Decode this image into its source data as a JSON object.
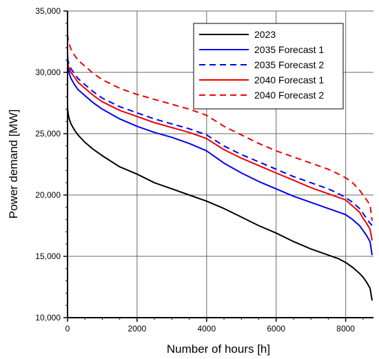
{
  "chart_data": {
    "type": "line",
    "title": "",
    "xlabel": "Number of hours [h]",
    "ylabel": "Power demand [MW]",
    "xlim": [
      0,
      8800
    ],
    "ylim": [
      10000,
      35000
    ],
    "xticks": [
      0,
      2000,
      4000,
      6000,
      8000
    ],
    "xtick_labels": [
      "0",
      "2000",
      "4000",
      "6000",
      "8000"
    ],
    "yticks": [
      10000,
      15000,
      20000,
      25000,
      30000,
      35000
    ],
    "ytick_labels": [
      "10,000",
      "15,000",
      "20,000",
      "25,000",
      "30,000",
      "35,000"
    ],
    "grid": true,
    "legend_position": "top-right",
    "series": [
      {
        "name": "2023",
        "color": "#000000",
        "dash": "solid",
        "x": [
          0,
          20,
          50,
          100,
          200,
          300,
          500,
          750,
          1000,
          1500,
          2000,
          2500,
          3000,
          3500,
          4000,
          4500,
          5000,
          5500,
          6000,
          6500,
          7000,
          7500,
          7800,
          8000,
          8200,
          8400,
          8500,
          8600,
          8700,
          8760
        ],
        "y": [
          27100,
          26600,
          26200,
          25800,
          25300,
          24900,
          24300,
          23700,
          23200,
          22300,
          21700,
          21000,
          20500,
          20000,
          19500,
          18900,
          18200,
          17500,
          16900,
          16200,
          15600,
          15100,
          14800,
          14500,
          14100,
          13600,
          13300,
          12900,
          12400,
          11400
        ]
      },
      {
        "name": "2035 Forecast 1",
        "color": "#0000ee",
        "dash": "solid",
        "x": [
          0,
          20,
          50,
          100,
          200,
          300,
          500,
          750,
          1000,
          1500,
          2000,
          2500,
          3000,
          3500,
          4000,
          4500,
          5000,
          5500,
          6000,
          6500,
          7000,
          7500,
          7800,
          8000,
          8200,
          8400,
          8500,
          8600,
          8700,
          8760
        ],
        "y": [
          31600,
          30400,
          29900,
          29500,
          29000,
          28600,
          28100,
          27500,
          27000,
          26200,
          25600,
          25100,
          24700,
          24200,
          23600,
          22600,
          21800,
          21100,
          20500,
          19900,
          19400,
          18900,
          18600,
          18400,
          18000,
          17500,
          17100,
          16700,
          16200,
          15100
        ]
      },
      {
        "name": "2035 Forecast  2",
        "color": "#0000ee",
        "dash": "dashed",
        "x": [
          0,
          20,
          50,
          100,
          200,
          300,
          500,
          750,
          1000,
          1500,
          2000,
          2500,
          3000,
          3500,
          4000,
          4500,
          5000,
          5500,
          6000,
          6500,
          7000,
          7500,
          7800,
          8000,
          8200,
          8400,
          8500,
          8600,
          8700,
          8760
        ],
        "y": [
          31200,
          30900,
          30600,
          30300,
          29900,
          29500,
          29000,
          28400,
          27900,
          27200,
          26700,
          26200,
          25800,
          25400,
          24900,
          24000,
          23300,
          22700,
          22100,
          21500,
          21000,
          20500,
          20100,
          19800,
          19400,
          18900,
          18500,
          18100,
          17700,
          17500
        ]
      },
      {
        "name": "2040 Forecast 1",
        "color": "#ee0000",
        "dash": "solid",
        "x": [
          0,
          20,
          50,
          100,
          200,
          300,
          500,
          750,
          1000,
          1500,
          2000,
          2500,
          3000,
          3500,
          4000,
          4500,
          5000,
          5500,
          6000,
          6500,
          7000,
          7500,
          7800,
          8000,
          8200,
          8400,
          8500,
          8600,
          8700,
          8760
        ],
        "y": [
          30900,
          30500,
          30300,
          30000,
          29600,
          29200,
          28700,
          28100,
          27600,
          26900,
          26400,
          25900,
          25500,
          25100,
          24600,
          23700,
          23000,
          22400,
          21800,
          21200,
          20600,
          20100,
          19800,
          19600,
          19100,
          18600,
          18100,
          17700,
          17200,
          16300
        ]
      },
      {
        "name": "2040 Forecast 2",
        "color": "#ee0000",
        "dash": "dashed",
        "x": [
          0,
          20,
          50,
          100,
          200,
          300,
          500,
          750,
          1000,
          1500,
          2000,
          2500,
          3000,
          3500,
          4000,
          4500,
          5000,
          5500,
          6000,
          6500,
          7000,
          7500,
          7800,
          8000,
          8200,
          8400,
          8500,
          8600,
          8700,
          8760
        ],
        "y": [
          33100,
          32600,
          32300,
          31900,
          31400,
          31000,
          30500,
          29900,
          29400,
          28700,
          28200,
          27800,
          27400,
          27000,
          26500,
          25600,
          24900,
          24200,
          23600,
          23100,
          22600,
          22100,
          21700,
          21400,
          21000,
          20400,
          20000,
          19600,
          19200,
          17900
        ]
      }
    ]
  }
}
